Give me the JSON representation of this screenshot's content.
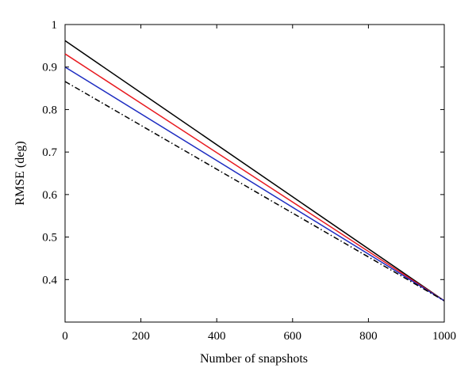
{
  "chart_data": {
    "type": "line",
    "title": "",
    "xlabel": "Number of snapshots",
    "ylabel": "RMSE (deg)",
    "xlim": [
      0,
      1000
    ],
    "ylim": [
      0.3,
      1.0
    ],
    "xticks": [
      0,
      200,
      400,
      600,
      800,
      1000
    ],
    "yticks": [
      0.4,
      0.5,
      0.6,
      0.7,
      0.8,
      0.9,
      1
    ],
    "grid": false,
    "legend": "none",
    "series": [
      {
        "color": "#000000",
        "dash": "solid",
        "x": [
          0,
          1000
        ],
        "y": [
          0.962,
          0.35
        ]
      },
      {
        "color": "#e8191f",
        "dash": "solid",
        "x": [
          0,
          1000
        ],
        "y": [
          0.931,
          0.35
        ]
      },
      {
        "color": "#1d2cc1",
        "dash": "solid",
        "x": [
          0,
          1000
        ],
        "y": [
          0.9,
          0.35
        ]
      },
      {
        "color": "#000000",
        "dash": "dashdot",
        "x": [
          0,
          1000
        ],
        "y": [
          0.866,
          0.35
        ]
      }
    ]
  }
}
